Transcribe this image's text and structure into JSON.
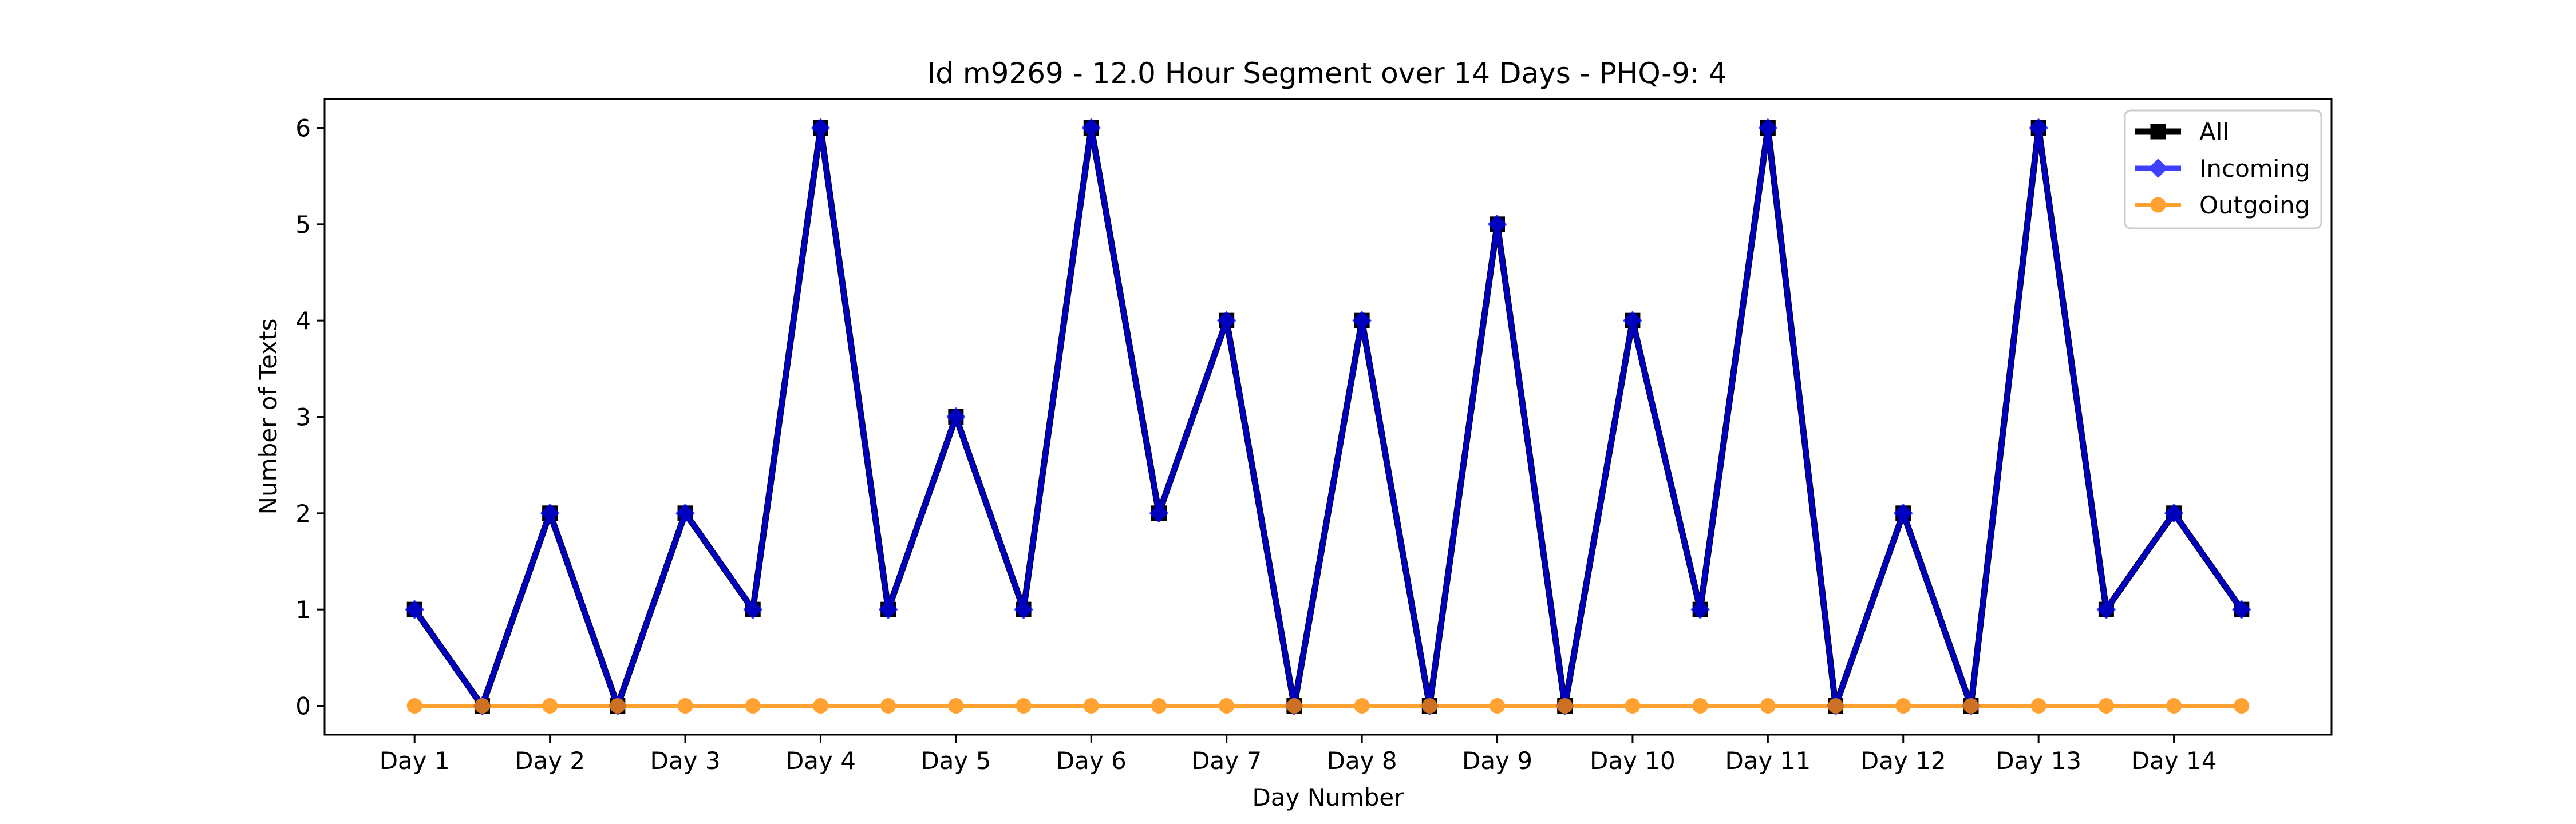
{
  "chart_data": {
    "type": "line",
    "title": "Id m9269 - 12.0 Hour Segment over 14 Days - PHQ-9: 4",
    "xlabel": "Day Number",
    "ylabel": "Number of Texts",
    "x_tick_labels": [
      "Day 1",
      "Day 2",
      "Day 3",
      "Day 4",
      "Day 5",
      "Day 6",
      "Day 7",
      "Day 8",
      "Day 9",
      "Day 10",
      "Day 11",
      "Day 12",
      "Day 13",
      "Day 14"
    ],
    "x": [
      1,
      1.5,
      2,
      2.5,
      3,
      3.5,
      4,
      4.5,
      5,
      5.5,
      6,
      6.5,
      7,
      7.5,
      8,
      8.5,
      9,
      9.5,
      10,
      10.5,
      11,
      11.5,
      12,
      12.5,
      13,
      13.5,
      14,
      14.5
    ],
    "xlim": [
      0.335,
      15.165
    ],
    "ylim": [
      -0.3,
      6.3
    ],
    "y_ticks": [
      0,
      1,
      2,
      3,
      4,
      5,
      6
    ],
    "grid": false,
    "legend_position": "top-right",
    "series": [
      {
        "name": "All",
        "color": "#000000",
        "marker": "square",
        "values": [
          1,
          0,
          2,
          0,
          2,
          1,
          6,
          1,
          3,
          1,
          6,
          2,
          4,
          0,
          4,
          0,
          5,
          0,
          4,
          1,
          6,
          0,
          2,
          0,
          6,
          1,
          2,
          1
        ]
      },
      {
        "name": "Incoming",
        "color": "#0000ff",
        "marker": "diamond",
        "values": [
          1,
          0,
          2,
          0,
          2,
          1,
          6,
          1,
          3,
          1,
          6,
          2,
          4,
          0,
          4,
          0,
          5,
          0,
          4,
          1,
          6,
          0,
          2,
          0,
          6,
          1,
          2,
          1
        ]
      },
      {
        "name": "Outgoing",
        "color": "#ff8c00",
        "marker": "circle",
        "values": [
          0,
          0,
          0,
          0,
          0,
          0,
          0,
          0,
          0,
          0,
          0,
          0,
          0,
          0,
          0,
          0,
          0,
          0,
          0,
          0,
          0,
          0,
          0,
          0,
          0,
          0,
          0,
          0
        ]
      }
    ]
  }
}
